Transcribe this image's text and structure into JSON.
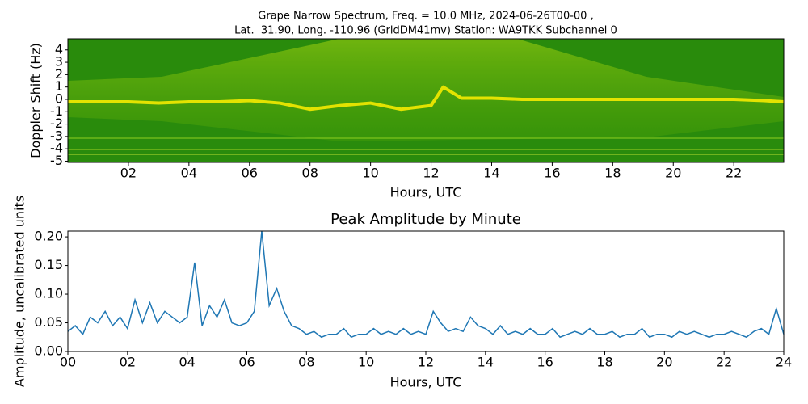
{
  "chart_data": [
    {
      "type": "spectrogram",
      "title": "Grape Narrow Spectrum, Freq. = 10.0 MHz, 2024-06-26T00-00 ,",
      "subtitle": "Lat.  31.90, Long. -110.96 (GridDM41mv) Station: WA9TKK Subchannel 0",
      "xlabel": "Hours, UTC",
      "ylabel": "Doppler Shift (Hz)",
      "xlim": [
        0,
        23.65
      ],
      "ylim": [
        -5.1,
        4.9
      ],
      "xticks": [
        {
          "value": 2,
          "label": "02"
        },
        {
          "value": 4,
          "label": "04"
        },
        {
          "value": 6,
          "label": "06"
        },
        {
          "value": 8,
          "label": "08"
        },
        {
          "value": 10,
          "label": "10"
        },
        {
          "value": 12,
          "label": "12"
        },
        {
          "value": 14,
          "label": "14"
        },
        {
          "value": 16,
          "label": "16"
        },
        {
          "value": 18,
          "label": "18"
        },
        {
          "value": 20,
          "label": "20"
        },
        {
          "value": 22,
          "label": "22"
        }
      ],
      "yticks": [
        4,
        3,
        2,
        1,
        0,
        -1,
        -2,
        -3,
        -4,
        -5
      ],
      "x": [
        0,
        1,
        2,
        3,
        4,
        5,
        6,
        7,
        8,
        9,
        10,
        11,
        12,
        12.4,
        13,
        14,
        15,
        16,
        17,
        18,
        19,
        20,
        21,
        22,
        23,
        23.65
      ],
      "values": [
        -0.2,
        -0.2,
        -0.2,
        -0.3,
        -0.2,
        -0.2,
        -0.1,
        -0.3,
        -0.8,
        -0.5,
        -0.3,
        -0.8,
        -0.5,
        1.0,
        0.1,
        0.1,
        0,
        0,
        0,
        0,
        0,
        0,
        0,
        0,
        -0.1,
        -0.2
      ],
      "color": "#ffee00"
    },
    {
      "type": "line",
      "title": "Peak Amplitude by Minute",
      "xlabel": "Hours, UTC",
      "ylabel": "Amplitude, uncalibrated units",
      "xlim": [
        0,
        24
      ],
      "ylim": [
        0,
        0.21
      ],
      "xticks": [
        {
          "value": 0,
          "label": "00"
        },
        {
          "value": 2,
          "label": "02"
        },
        {
          "value": 4,
          "label": "04"
        },
        {
          "value": 6,
          "label": "06"
        },
        {
          "value": 8,
          "label": "08"
        },
        {
          "value": 10,
          "label": "10"
        },
        {
          "value": 12,
          "label": "12"
        },
        {
          "value": 14,
          "label": "14"
        },
        {
          "value": 16,
          "label": "16"
        },
        {
          "value": 18,
          "label": "18"
        },
        {
          "value": 20,
          "label": "20"
        },
        {
          "value": 22,
          "label": "22"
        },
        {
          "value": 24,
          "label": "24"
        }
      ],
      "yticks": [
        {
          "value": 0,
          "label": "0.00"
        },
        0.05,
        {
          "value": 0.1,
          "label": "0.10"
        },
        0.15,
        {
          "value": 0.2,
          "label": "0.20"
        }
      ],
      "x": [
        0,
        0.25,
        0.5,
        0.75,
        1,
        1.25,
        1.5,
        1.75,
        2,
        2.25,
        2.5,
        2.75,
        3,
        3.25,
        3.5,
        3.75,
        4,
        4.25,
        4.5,
        4.75,
        5,
        5.25,
        5.5,
        5.75,
        6,
        6.25,
        6.5,
        6.75,
        7,
        7.25,
        7.5,
        7.75,
        8,
        8.25,
        8.5,
        8.75,
        9,
        9.25,
        9.5,
        9.75,
        10,
        10.25,
        10.5,
        10.75,
        11,
        11.25,
        11.5,
        11.75,
        12,
        12.25,
        12.5,
        12.75,
        13,
        13.25,
        13.5,
        13.75,
        14,
        14.25,
        14.5,
        14.75,
        15,
        15.25,
        15.5,
        15.75,
        16,
        16.25,
        16.5,
        16.75,
        17,
        17.25,
        17.5,
        17.75,
        18,
        18.25,
        18.5,
        18.75,
        19,
        19.25,
        19.5,
        19.75,
        20,
        20.25,
        20.5,
        20.75,
        21,
        21.25,
        21.5,
        21.75,
        22,
        22.25,
        22.5,
        22.75,
        23,
        23.25,
        23.5,
        23.75,
        24
      ],
      "values": [
        0.035,
        0.045,
        0.03,
        0.06,
        0.05,
        0.07,
        0.045,
        0.06,
        0.04,
        0.09,
        0.05,
        0.085,
        0.05,
        0.07,
        0.06,
        0.05,
        0.06,
        0.155,
        0.045,
        0.08,
        0.06,
        0.09,
        0.05,
        0.045,
        0.05,
        0.07,
        0.21,
        0.08,
        0.11,
        0.07,
        0.045,
        0.04,
        0.03,
        0.035,
        0.025,
        0.03,
        0.03,
        0.04,
        0.025,
        0.03,
        0.03,
        0.04,
        0.03,
        0.035,
        0.03,
        0.04,
        0.03,
        0.035,
        0.03,
        0.07,
        0.05,
        0.035,
        0.04,
        0.035,
        0.06,
        0.045,
        0.04,
        0.03,
        0.045,
        0.03,
        0.035,
        0.03,
        0.04,
        0.03,
        0.03,
        0.04,
        0.025,
        0.03,
        0.035,
        0.03,
        0.04,
        0.03,
        0.03,
        0.035,
        0.025,
        0.03,
        0.03,
        0.04,
        0.025,
        0.03,
        0.03,
        0.025,
        0.035,
        0.03,
        0.035,
        0.03,
        0.025,
        0.03,
        0.03,
        0.035,
        0.03,
        0.025,
        0.035,
        0.04,
        0.03,
        0.075,
        0.03
      ],
      "color": "#1f77b4"
    }
  ]
}
